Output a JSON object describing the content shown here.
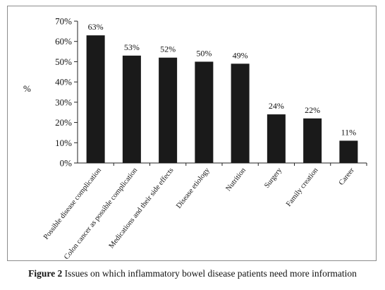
{
  "caption": {
    "label": "Figure 2",
    "text": "Issues on which inflammatory bowel disease patients need more information"
  },
  "chart_data": {
    "type": "bar",
    "ylabel": "%",
    "ylim": [
      0,
      70
    ],
    "yticks": [
      "0%",
      "10%",
      "20%",
      "30%",
      "40%",
      "50%",
      "60%",
      "70%"
    ],
    "grid": false,
    "categories": [
      "Possible disease complication",
      "Colon cancer as possible complication",
      "Medications and their side effects",
      "Disease etiology",
      "Nutrition",
      "Surgery",
      "Family creation",
      "Career"
    ],
    "values": [
      63,
      53,
      52,
      50,
      49,
      24,
      22,
      11
    ],
    "value_labels": [
      "63%",
      "53%",
      "52%",
      "50%",
      "49%",
      "24%",
      "22%",
      "11%"
    ],
    "bar_color": "#1a1a1a"
  }
}
